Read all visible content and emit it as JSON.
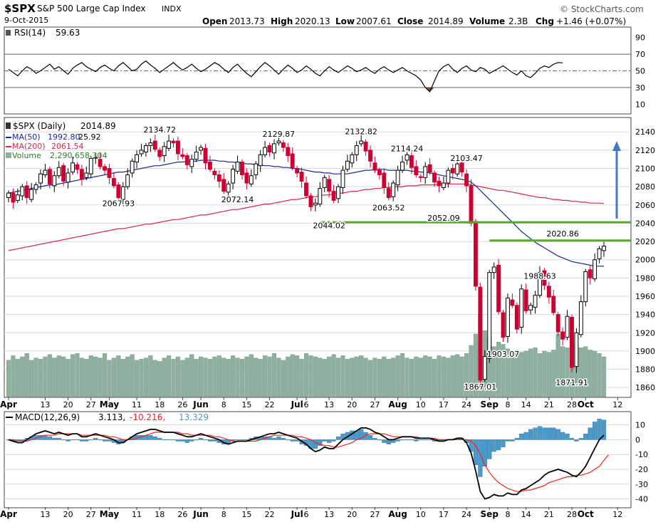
{
  "header": {
    "symbol": "$SPX",
    "name": "S&P 500 Large Cap Index",
    "exchange": "INDX",
    "date": "9-Oct-2015",
    "brand": "© StockCharts.com",
    "open_label": "Open",
    "open": "2013.73",
    "high_label": "High",
    "high": "2020.13",
    "low_label": "Low",
    "low": "2007.61",
    "close_label": "Close",
    "close": "2014.89",
    "volume_label": "Volume",
    "volume": "2.3B",
    "chg_label": "Chg",
    "chg": "+1.46 (+0.07%)"
  },
  "colors": {
    "up": "#000000",
    "down": "#cc0033",
    "ma50": "#1a2a9a",
    "ma200": "#d9264a",
    "volume": "#8fb09f",
    "green_line": "#5aa832",
    "arrow": "#4a78c8",
    "rsi_line": "#000000",
    "rsi_fill": "#8a4a4a",
    "macd_line": "#000000",
    "macd_signal": "#ff2020",
    "macd_hist": "#4a9acb",
    "grid": "#d8d8d8"
  },
  "chart_data": [
    {
      "type": "line",
      "panel": "rsi",
      "title": "RSI(14) 59.63",
      "legend": "RSI(14)",
      "legend_value": "59.63",
      "ylim": [
        0,
        100
      ],
      "yticks": [
        90,
        70,
        50,
        30,
        10
      ],
      "reference_lines": [
        70,
        50,
        30
      ],
      "values": [
        52,
        48,
        44,
        50,
        55,
        52,
        47,
        50,
        54,
        58,
        52,
        55,
        50,
        46,
        53,
        57,
        60,
        55,
        52,
        49,
        54,
        57,
        53,
        50,
        56,
        60,
        55,
        50,
        52,
        58,
        62,
        57,
        53,
        48,
        52,
        56,
        60,
        55,
        51,
        54,
        58,
        53,
        49,
        52,
        56,
        60,
        57,
        52,
        48,
        54,
        58,
        52,
        47,
        43,
        49,
        55,
        60,
        56,
        51,
        46,
        52,
        57,
        53,
        48,
        51,
        56,
        52,
        47,
        44,
        50,
        55,
        51,
        48,
        52,
        56,
        53,
        49,
        51,
        54,
        50,
        47,
        52,
        55,
        51,
        48,
        51,
        54,
        50,
        47,
        44,
        39,
        30,
        25,
        38,
        50,
        55,
        58,
        52,
        48,
        53,
        56,
        51,
        49,
        54,
        52,
        47,
        50,
        53,
        56,
        52,
        48,
        45,
        50,
        44,
        42,
        47,
        53,
        56,
        54,
        58,
        60,
        59.63
      ]
    },
    {
      "type": "candlestick",
      "panel": "price",
      "title": "$SPX (Daily) 2014.89",
      "legend": [
        {
          "label": "$SPX (Daily)",
          "value": "2014.89"
        },
        {
          "label": "MA(50)",
          "value": "1992.80",
          "extra": "25.92"
        },
        {
          "label": "MA(200)",
          "value": "2061.54"
        },
        {
          "label": "Volume",
          "value": "2,290,658,304"
        }
      ],
      "ylim": [
        1850,
        2155
      ],
      "yticks": [
        2140,
        2120,
        2100,
        2080,
        2060,
        2040,
        2020,
        2000,
        1980,
        1960,
        1940,
        1920,
        1900,
        1880,
        1860
      ],
      "closes": [
        2073,
        2063,
        2071,
        2080,
        2068,
        2077,
        2082,
        2094,
        2098,
        2083,
        2092,
        2101,
        2086,
        2095,
        2106,
        2099,
        2088,
        2095,
        2111,
        2112,
        2102,
        2098,
        2090,
        2081,
        2068,
        2080,
        2093,
        2108,
        2115,
        2120,
        2125,
        2128,
        2121,
        2113,
        2124,
        2130,
        2128,
        2116,
        2113,
        2104,
        2110,
        2118,
        2123,
        2106,
        2099,
        2093,
        2086,
        2075,
        2083,
        2099,
        2107,
        2093,
        2084,
        2092,
        2105,
        2115,
        2123,
        2118,
        2127,
        2130,
        2123,
        2114,
        2101,
        2095,
        2086,
        2070,
        2058,
        2062,
        2078,
        2090,
        2075,
        2065,
        2080,
        2098,
        2108,
        2115,
        2125,
        2130,
        2119,
        2108,
        2098,
        2093,
        2079,
        2068,
        2084,
        2098,
        2107,
        2115,
        2101,
        2093,
        2090,
        2102,
        2096,
        2085,
        2081,
        2084,
        2098,
        2095,
        2105,
        2096,
        2081,
        2040,
        1971,
        1868,
        1894,
        1986,
        1992,
        1943,
        1915,
        1958,
        1950,
        1924,
        1968,
        1944,
        1950,
        1961,
        1986,
        1972,
        1959,
        1942,
        1921,
        1913,
        1938,
        1882,
        1920,
        1954,
        1987,
        1980,
        2000,
        2012,
        2014.89
      ],
      "ma50": [
        2073,
        2074,
        2075,
        2076,
        2077,
        2078,
        2079,
        2080,
        2081,
        2082,
        2082,
        2083,
        2084,
        2085,
        2086,
        2087,
        2088,
        2089,
        2090,
        2091,
        2092,
        2093,
        2094,
        2095,
        2096,
        2096,
        2097,
        2098,
        2099,
        2100,
        2101,
        2102,
        2103,
        2103,
        2104,
        2105,
        2106,
        2107,
        2107,
        2108,
        2108,
        2108,
        2109,
        2109,
        2109,
        2109,
        2108,
        2108,
        2107,
        2107,
        2106,
        2106,
        2105,
        2105,
        2104,
        2104,
        2103,
        2103,
        2102,
        2102,
        2101,
        2101,
        2100,
        2100,
        2099,
        2098,
        2097,
        2096,
        2096,
        2095,
        2095,
        2094,
        2094,
        2094,
        2094,
        2095,
        2096,
        2097,
        2098,
        2098,
        2099,
        2099,
        2099,
        2098,
        2098,
        2098,
        2098,
        2098,
        2097,
        2097,
        2096,
        2096,
        2095,
        2094,
        2093,
        2092,
        2091,
        2090,
        2089,
        2088,
        2087,
        2085,
        2081,
        2076,
        2071,
        2066,
        2061,
        2056,
        2051,
        2046,
        2041,
        2036,
        2031,
        2027,
        2023,
        2019,
        2016,
        2013,
        2010,
        2007,
        2004,
        2002,
        2000,
        1998,
        1997,
        1996,
        1995,
        1994,
        1993,
        1993,
        1992.8
      ],
      "ma200": [
        2010,
        2011,
        2012,
        2013,
        2014,
        2015,
        2016,
        2017,
        2018,
        2019,
        2020,
        2021,
        2022,
        2023,
        2024,
        2025,
        2026,
        2027,
        2028,
        2029,
        2030,
        2031,
        2032,
        2033,
        2034,
        2034,
        2035,
        2036,
        2037,
        2038,
        2039,
        2039,
        2040,
        2041,
        2042,
        2043,
        2044,
        2044,
        2045,
        2046,
        2047,
        2048,
        2049,
        2049,
        2050,
        2051,
        2052,
        2053,
        2054,
        2055,
        2055,
        2056,
        2057,
        2058,
        2059,
        2060,
        2061,
        2061,
        2062,
        2063,
        2064,
        2065,
        2066,
        2066,
        2067,
        2068,
        2069,
        2069,
        2070,
        2071,
        2071,
        2072,
        2073,
        2073,
        2074,
        2075,
        2075,
        2076,
        2077,
        2077,
        2078,
        2078,
        2079,
        2079,
        2080,
        2080,
        2080,
        2081,
        2081,
        2081,
        2082,
        2082,
        2082,
        2082,
        2083,
        2083,
        2083,
        2083,
        2083,
        2083,
        2083,
        2082,
        2081,
        2080,
        2079,
        2078,
        2077,
        2076,
        2076,
        2075,
        2074,
        2073,
        2072,
        2071,
        2070,
        2069,
        2068,
        2068,
        2067,
        2066,
        2066,
        2065,
        2065,
        2064,
        2064,
        2063,
        2063,
        2062,
        2062,
        2062,
        2061.54
      ],
      "volume_scale": "relative",
      "volume": [
        0.32,
        0.36,
        0.33,
        0.35,
        0.38,
        0.32,
        0.34,
        0.33,
        0.35,
        0.37,
        0.34,
        0.36,
        0.35,
        0.33,
        0.37,
        0.38,
        0.34,
        0.33,
        0.36,
        0.35,
        0.34,
        0.38,
        0.32,
        0.34,
        0.36,
        0.33,
        0.35,
        0.37,
        0.32,
        0.33,
        0.34,
        0.36,
        0.32,
        0.31,
        0.34,
        0.36,
        0.33,
        0.35,
        0.32,
        0.34,
        0.37,
        0.33,
        0.35,
        0.34,
        0.33,
        0.35,
        0.36,
        0.34,
        0.33,
        0.36,
        0.34,
        0.33,
        0.35,
        0.37,
        0.34,
        0.33,
        0.36,
        0.35,
        0.38,
        0.34,
        0.32,
        0.35,
        0.37,
        0.36,
        0.33,
        0.38,
        0.36,
        0.35,
        0.34,
        0.33,
        0.35,
        0.37,
        0.34,
        0.36,
        0.33,
        0.34,
        0.35,
        0.36,
        0.34,
        0.32,
        0.34,
        0.33,
        0.35,
        0.33,
        0.34,
        0.36,
        0.38,
        0.34,
        0.33,
        0.35,
        0.34,
        0.36,
        0.35,
        0.33,
        0.36,
        0.35,
        0.34,
        0.36,
        0.37,
        0.35,
        0.38,
        0.45,
        0.55,
        0.72,
        0.58,
        0.52,
        0.44,
        0.48,
        0.46,
        0.42,
        0.4,
        0.41,
        0.39,
        0.4,
        0.42,
        0.43,
        0.38,
        0.4,
        0.39,
        0.41,
        0.55,
        0.44,
        0.43,
        0.52,
        0.46,
        0.43,
        0.44,
        0.41,
        0.4,
        0.38,
        0.35
      ],
      "annotations": [
        {
          "label": "2134.72",
          "value": 2134.72,
          "index": 33
        },
        {
          "label": "2067.93",
          "value": 2067.93,
          "index": 24
        },
        {
          "label": "2129.87",
          "value": 2129.87,
          "index": 59
        },
        {
          "label": "2072.14",
          "value": 2072.14,
          "index": 50
        },
        {
          "label": "2132.82",
          "value": 2132.82,
          "index": 77
        },
        {
          "label": "2044.02",
          "value": 2044.02,
          "index": 70
        },
        {
          "label": "2114.24",
          "value": 2114.24,
          "index": 87
        },
        {
          "label": "2063.52",
          "value": 2063.52,
          "index": 83
        },
        {
          "label": "2103.47",
          "value": 2103.47,
          "index": 100
        },
        {
          "label": "2052.09",
          "value": 2052.09,
          "index": 95
        },
        {
          "label": "1988.63",
          "value": 1988.63,
          "index": 116
        },
        {
          "label": "2020.86",
          "value": 2020.86,
          "index": 121
        },
        {
          "label": "1903.07",
          "value": 1903.07,
          "index": 108
        },
        {
          "label": "1867.01",
          "value": 1867.01,
          "index": 103
        },
        {
          "label": "1871.91",
          "value": 1871.91,
          "index": 123
        }
      ],
      "horizontal_lines": [
        {
          "value": 2041,
          "from_index": 68
        },
        {
          "value": 2021,
          "from_index": 105
        }
      ],
      "arrow": {
        "from": 2045,
        "to": 2130
      }
    },
    {
      "type": "line",
      "panel": "macd",
      "title": "MACD(12,26,9) 3.113, -10.216, 13.329",
      "legend_label": "MACD(12,26,9)",
      "legend_values": [
        "3.113",
        "-10.216",
        "13.329"
      ],
      "ylim": [
        -45,
        18
      ],
      "yticks": [
        10,
        0,
        -10,
        -20,
        -30,
        -40
      ],
      "macd": [
        0,
        -1,
        -2,
        -2,
        0,
        2,
        4,
        5,
        6,
        5,
        4,
        5,
        4,
        3,
        4,
        4,
        2,
        2,
        3,
        4,
        3,
        2,
        1,
        0,
        -2,
        -2,
        0,
        2,
        4,
        5,
        6,
        7,
        7,
        6,
        5,
        5,
        5,
        4,
        3,
        2,
        2,
        3,
        4,
        3,
        2,
        1,
        0,
        -2,
        -3,
        -2,
        -1,
        -1,
        -1,
        0,
        1,
        2,
        3,
        4,
        4,
        5,
        4,
        3,
        2,
        1,
        -1,
        -3,
        -6,
        -8,
        -7,
        -5,
        -6,
        -6,
        -3,
        0,
        2,
        4,
        6,
        8,
        8,
        7,
        5,
        4,
        2,
        0,
        0,
        1,
        2,
        2,
        2,
        1,
        1,
        1,
        1,
        0,
        -1,
        -1,
        0,
        0,
        1,
        1,
        -2,
        -9,
        -21,
        -35,
        -40,
        -39,
        -37,
        -38,
        -38,
        -36,
        -37,
        -37,
        -34,
        -33,
        -31,
        -29,
        -27,
        -24,
        -22,
        -21,
        -20,
        -21,
        -22,
        -24,
        -25,
        -22,
        -18,
        -12,
        -6,
        0,
        3.113
      ],
      "signal": [
        0,
        0,
        -1,
        -1,
        -1,
        0,
        1,
        2,
        3,
        3,
        3,
        4,
        4,
        4,
        4,
        4,
        3,
        3,
        3,
        3,
        3,
        3,
        2,
        2,
        1,
        0,
        0,
        0,
        1,
        2,
        3,
        4,
        5,
        5,
        5,
        5,
        5,
        5,
        4,
        4,
        3,
        3,
        3,
        3,
        3,
        2,
        2,
        1,
        0,
        -1,
        -1,
        -1,
        -1,
        -1,
        -1,
        0,
        1,
        2,
        3,
        3,
        3,
        3,
        3,
        2,
        2,
        1,
        0,
        -2,
        -3,
        -4,
        -4,
        -5,
        -5,
        -4,
        -3,
        -2,
        0,
        1,
        3,
        4,
        4,
        4,
        4,
        3,
        2,
        2,
        2,
        2,
        2,
        2,
        1,
        1,
        1,
        1,
        0,
        0,
        0,
        0,
        0,
        0,
        0,
        -1,
        -4,
        -10,
        -17,
        -22,
        -26,
        -29,
        -31,
        -33,
        -34,
        -35,
        -35,
        -34,
        -34,
        -33,
        -32,
        -31,
        -29,
        -28,
        -27,
        -26,
        -25,
        -25,
        -24,
        -24,
        -23,
        -22,
        -20,
        -18,
        -14,
        -10.216
      ],
      "histogram": [
        0,
        -1,
        -1,
        -1,
        1,
        2,
        3,
        3,
        3,
        2,
        1,
        1,
        0,
        -1,
        0,
        0,
        -1,
        -1,
        0,
        1,
        0,
        -1,
        -1,
        -2,
        -3,
        -2,
        0,
        2,
        3,
        3,
        3,
        3,
        2,
        1,
        0,
        0,
        0,
        -1,
        -1,
        -2,
        -1,
        0,
        1,
        0,
        -1,
        -1,
        -2,
        -3,
        -3,
        -1,
        0,
        0,
        0,
        1,
        2,
        2,
        2,
        2,
        1,
        2,
        1,
        0,
        -1,
        -1,
        -3,
        -4,
        -6,
        -6,
        -4,
        -1,
        -2,
        -1,
        2,
        4,
        5,
        6,
        6,
        7,
        5,
        3,
        1,
        0,
        -2,
        -3,
        -2,
        -1,
        0,
        0,
        0,
        -1,
        0,
        0,
        0,
        -1,
        -1,
        -1,
        0,
        0,
        1,
        1,
        -2,
        -8,
        -17,
        -25,
        -18,
        -13,
        -8,
        -7,
        -5,
        -1,
        -1,
        1,
        4,
        5,
        7,
        8,
        9,
        8,
        8,
        8,
        7,
        5,
        4,
        1,
        -1,
        1,
        4,
        8,
        12,
        14,
        13.329
      ]
    }
  ],
  "x_axis": {
    "ticks": [
      {
        "label": "Apr",
        "index": 0,
        "bold": true
      },
      {
        "label": "13",
        "index": 8
      },
      {
        "label": "20",
        "index": 13
      },
      {
        "label": "27",
        "index": 18
      },
      {
        "label": "May",
        "index": 22,
        "bold": true
      },
      {
        "label": "11",
        "index": 28
      },
      {
        "label": "18",
        "index": 33
      },
      {
        "label": "26",
        "index": 38
      },
      {
        "label": "Jun",
        "index": 42,
        "bold": true
      },
      {
        "label": "8",
        "index": 47
      },
      {
        "label": "15",
        "index": 52
      },
      {
        "label": "22",
        "index": 57
      },
      {
        "label": "Jul",
        "index": 63,
        "bold": true
      },
      {
        "label": "6",
        "index": 65
      },
      {
        "label": "13",
        "index": 70
      },
      {
        "label": "20",
        "index": 75
      },
      {
        "label": "27",
        "index": 80
      },
      {
        "label": "Aug",
        "index": 85,
        "bold": true
      },
      {
        "label": "10",
        "index": 90
      },
      {
        "label": "17",
        "index": 95
      },
      {
        "label": "24",
        "index": 100
      },
      {
        "label": "Sep",
        "index": 105,
        "bold": true
      },
      {
        "label": "8",
        "index": 109
      },
      {
        "label": "14",
        "index": 113
      },
      {
        "label": "21",
        "index": 118
      },
      {
        "label": "28",
        "index": 123
      },
      {
        "label": "Oct",
        "index": 126,
        "bold": true
      },
      {
        "label": "12",
        "index": 133
      }
    ]
  }
}
